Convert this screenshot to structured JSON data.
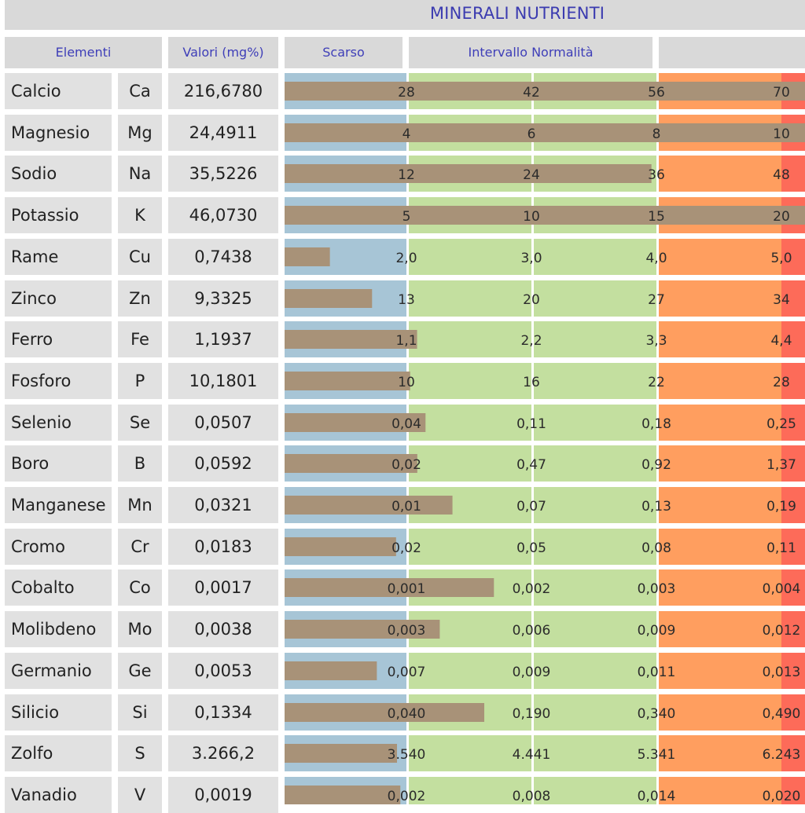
{
  "title": "MINERALI NUTRIENTI",
  "headers": {
    "elements": "Elementi",
    "values": "Valori (mg%)",
    "low": "Scarso",
    "normal": "Intervallo Normalità",
    "high": ""
  },
  "colors": {
    "low": "#a7c5d6",
    "normal": "#c3df9f",
    "high": "#ff9e5f",
    "excess": "#fd6b59",
    "bar": "#a89278",
    "label_bg": "#e1e1e1",
    "title": "#3b3bb0"
  },
  "chart_data": {
    "type": "bar",
    "title": "MINERALI NUTRIENTI",
    "categories": [
      "Calcio",
      "Magnesio",
      "Sodio",
      "Potassio",
      "Rame",
      "Zinco",
      "Ferro",
      "Fosforo",
      "Selenio",
      "Boro",
      "Manganese",
      "Cromo",
      "Cobalto",
      "Molibdeno",
      "Germanio",
      "Silicio",
      "Zolfo",
      "Vanadio"
    ],
    "zones": [
      "Scarso",
      "Intervallo Normalità",
      "Intervallo Normalità",
      "",
      ""
    ],
    "rows": [
      {
        "name": "Calcio",
        "symbol": "Ca",
        "value_label": "216,6780",
        "value": 216.678,
        "ticks": [
          "28",
          "42",
          "56",
          "70"
        ],
        "tick_values": [
          28,
          42,
          56,
          70
        ]
      },
      {
        "name": "Magnesio",
        "symbol": "Mg",
        "value_label": "24,4911",
        "value": 24.4911,
        "ticks": [
          "4",
          "6",
          "8",
          "10"
        ],
        "tick_values": [
          4,
          6,
          8,
          10
        ]
      },
      {
        "name": "Sodio",
        "symbol": "Na",
        "value_label": "35,5226",
        "value": 35.5226,
        "ticks": [
          "12",
          "24",
          "36",
          "48"
        ],
        "tick_values": [
          12,
          24,
          36,
          48
        ]
      },
      {
        "name": "Potassio",
        "symbol": "K",
        "value_label": "46,0730",
        "value": 46.073,
        "ticks": [
          "5",
          "10",
          "15",
          "20"
        ],
        "tick_values": [
          5,
          10,
          15,
          20
        ]
      },
      {
        "name": "Rame",
        "symbol": "Cu",
        "value_label": "0,7438",
        "value": 0.7438,
        "ticks": [
          "2,0",
          "3,0",
          "4,0",
          "5,0"
        ],
        "tick_values": [
          2,
          3,
          4,
          5
        ]
      },
      {
        "name": "Zinco",
        "symbol": "Zn",
        "value_label": "9,3325",
        "value": 9.3325,
        "ticks": [
          "13",
          "20",
          "27",
          "34"
        ],
        "tick_values": [
          13,
          20,
          27,
          34
        ]
      },
      {
        "name": "Ferro",
        "symbol": "Fe",
        "value_label": "1,1937",
        "value": 1.1937,
        "ticks": [
          "1,1",
          "2,2",
          "3,3",
          "4,4"
        ],
        "tick_values": [
          1.1,
          2.2,
          3.3,
          4.4
        ]
      },
      {
        "name": "Fosforo",
        "symbol": "P",
        "value_label": "10,1801",
        "value": 10.1801,
        "ticks": [
          "10",
          "16",
          "22",
          "28"
        ],
        "tick_values": [
          10,
          16,
          22,
          28
        ]
      },
      {
        "name": "Selenio",
        "symbol": "Se",
        "value_label": "0,0507",
        "value": 0.0507,
        "ticks": [
          "0,04",
          "0,11",
          "0,18",
          "0,25"
        ],
        "tick_values": [
          0.04,
          0.11,
          0.18,
          0.25
        ]
      },
      {
        "name": "Boro",
        "symbol": "B",
        "value_label": "0,0592",
        "value": 0.0592,
        "ticks": [
          "0,02",
          "0,47",
          "0,92",
          "1,37"
        ],
        "tick_values": [
          0.02,
          0.47,
          0.92,
          1.37
        ]
      },
      {
        "name": "Manganese",
        "symbol": "Mn",
        "value_label": "0,0321",
        "value": 0.0321,
        "ticks": [
          "0,01",
          "0,07",
          "0,13",
          "0,19"
        ],
        "tick_values": [
          0.01,
          0.07,
          0.13,
          0.19
        ]
      },
      {
        "name": "Cromo",
        "symbol": "Cr",
        "value_label": "0,0183",
        "value": 0.0183,
        "ticks": [
          "0,02",
          "0,05",
          "0,08",
          "0,11"
        ],
        "tick_values": [
          0.02,
          0.05,
          0.08,
          0.11
        ]
      },
      {
        "name": "Cobalto",
        "symbol": "Co",
        "value_label": "0,0017",
        "value": 0.0017,
        "ticks": [
          "0,001",
          "0,002",
          "0,003",
          "0,004"
        ],
        "tick_values": [
          0.001,
          0.002,
          0.003,
          0.004
        ]
      },
      {
        "name": "Molibdeno",
        "symbol": "Mo",
        "value_label": "0,0038",
        "value": 0.0038,
        "ticks": [
          "0,003",
          "0,006",
          "0,009",
          "0,012"
        ],
        "tick_values": [
          0.003,
          0.006,
          0.009,
          0.012
        ]
      },
      {
        "name": "Germanio",
        "symbol": "Ge",
        "value_label": "0,0053",
        "value": 0.0053,
        "ticks": [
          "0,007",
          "0,009",
          "0,011",
          "0,013"
        ],
        "tick_values": [
          0.007,
          0.009,
          0.011,
          0.013
        ]
      },
      {
        "name": "Silicio",
        "symbol": "Si",
        "value_label": "0,1334",
        "value": 0.1334,
        "ticks": [
          "0,040",
          "0,190",
          "0,340",
          "0,490"
        ],
        "tick_values": [
          0.04,
          0.19,
          0.34,
          0.49
        ]
      },
      {
        "name": "Zolfo",
        "symbol": "S",
        "value_label": "3.266,2",
        "value": 3266.2,
        "ticks": [
          "3.540",
          "4.441",
          "5.341",
          "6.243"
        ],
        "tick_values": [
          3540,
          4441,
          5341,
          6243
        ]
      },
      {
        "name": "Vanadio",
        "symbol": "V",
        "value_label": "0,0019",
        "value": 0.0019,
        "ticks": [
          "0,002",
          "0,008",
          "0,014",
          "0,020"
        ],
        "tick_values": [
          0.002,
          0.008,
          0.014,
          0.02
        ]
      }
    ]
  }
}
